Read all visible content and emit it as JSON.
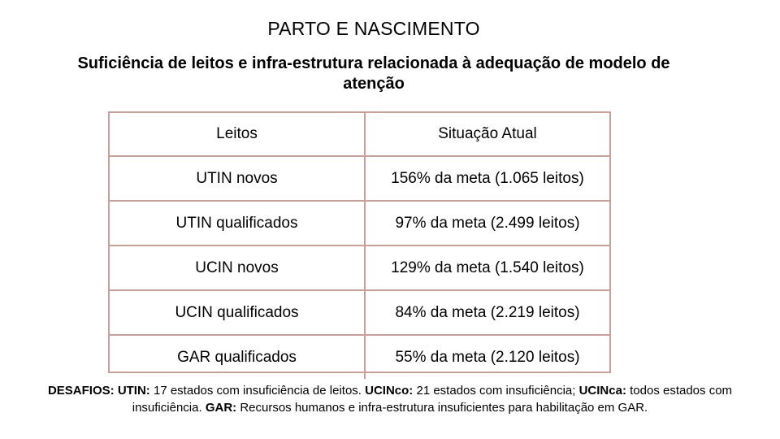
{
  "title": "PARTO E NASCIMENTO",
  "subtitle": "Suficiência de leitos e infra-estrutura relacionada à adequação de modelo de atenção",
  "table": {
    "headers": [
      "Leitos",
      "Situação Atual"
    ],
    "rows": [
      [
        "UTIN novos",
        "156% da meta (1.065 leitos)"
      ],
      [
        "UTIN qualificados",
        "97% da meta (2.499 leitos)"
      ],
      [
        "UCIN novos",
        "129% da meta (1.540 leitos)"
      ],
      [
        "UCIN qualificados",
        "84% da meta (2.219 leitos)"
      ],
      [
        "GAR qualificados",
        "55% da meta (2.120 leitos)"
      ]
    ]
  },
  "footer": {
    "desafios_label": "DESAFIOS:",
    "utin_label": "UTIN:",
    "utin_text": "17 estados com insuficiência de leitos.",
    "ucinco_label": "UCINco:",
    "ucinco_text": "21 estados com insuficiência;",
    "ucinca_label": "UCINca:",
    "ucinca_text": "todos estados com insuficiência.",
    "gar_label": "GAR:",
    "gar_text": "Recursos humanos e infra-estrutura insuficientes para habilitação em GAR."
  },
  "colors": {
    "table_border": "#c8a09a",
    "text": "#000000",
    "background": "#ffffff"
  }
}
